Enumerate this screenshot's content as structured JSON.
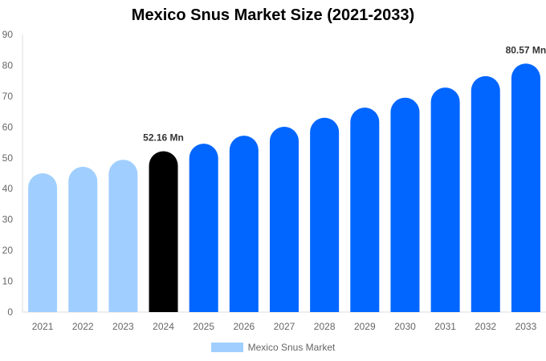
{
  "chart_data": {
    "type": "bar",
    "title": "Mexico Snus Market Size (2021-2033)",
    "categories": [
      "2021",
      "2022",
      "2023",
      "2024",
      "2025",
      "2026",
      "2027",
      "2028",
      "2029",
      "2030",
      "2031",
      "2032",
      "2033"
    ],
    "series": [
      {
        "name": "Mexico Snus Market",
        "values": [
          45.0,
          47.1,
          49.4,
          52.16,
          54.6,
          57.2,
          60.1,
          63.0,
          66.3,
          69.5,
          72.8,
          76.5,
          80.57
        ]
      }
    ],
    "data_labels": {
      "3": "52.16 Mn",
      "12": "80.57 Mn"
    },
    "ylim": [
      0,
      90
    ],
    "yticks": [
      0,
      10,
      20,
      30,
      40,
      50,
      60,
      70,
      80,
      90
    ],
    "xlabel": "",
    "ylabel": "",
    "grid": false,
    "legend": "bottom",
    "colors": {
      "historical": "#a0cfff",
      "current": "#000000",
      "forecast": "#0066ff"
    }
  }
}
